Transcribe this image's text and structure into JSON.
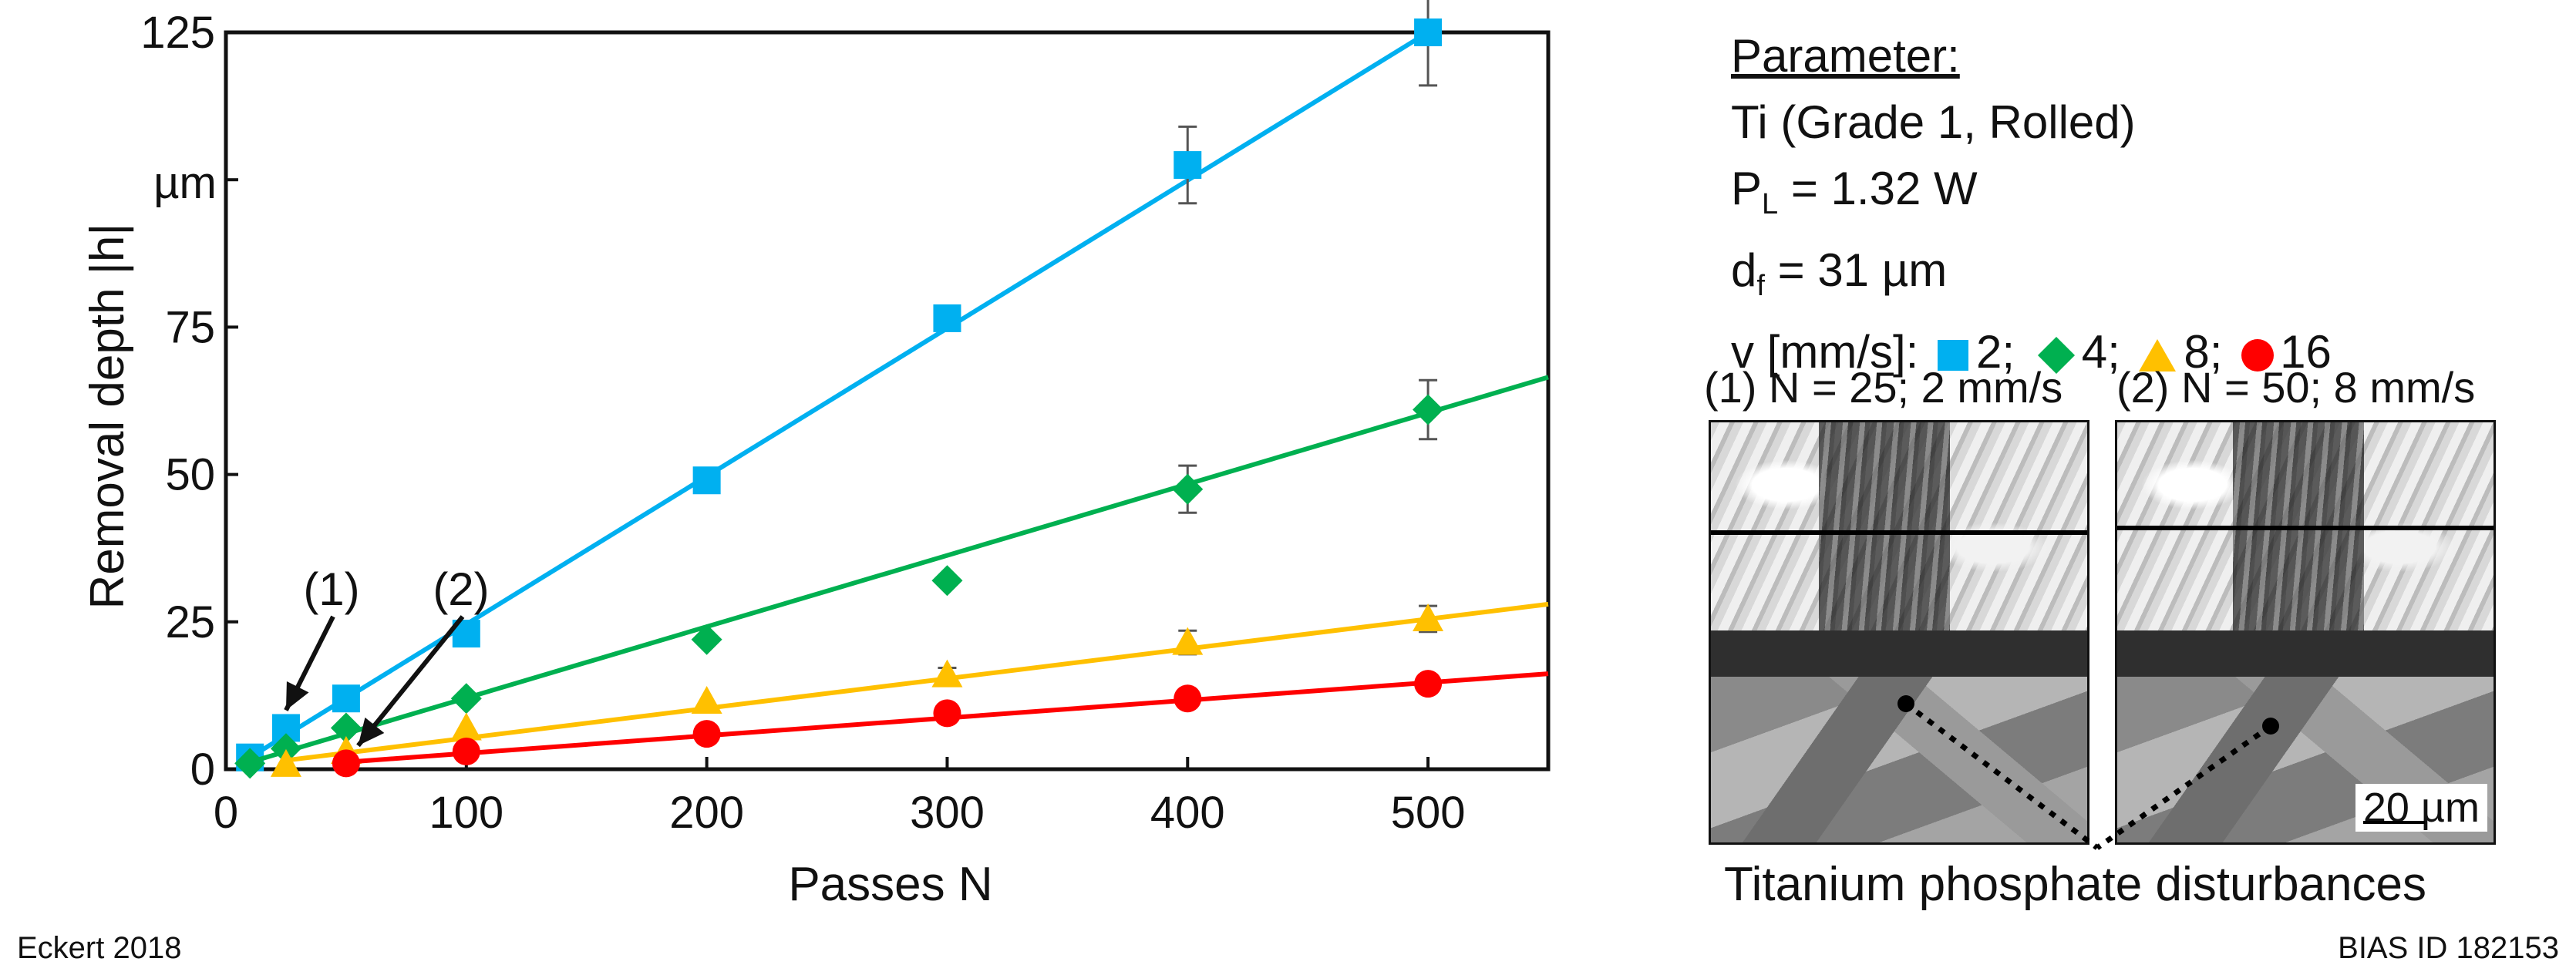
{
  "chart_data": {
    "type": "scatter",
    "xlabel": "Passes N",
    "ylabel": "Removal depth |h|",
    "y_unit_label": "µm",
    "xlim": [
      0,
      550
    ],
    "ylim": [
      0,
      125
    ],
    "x_ticks": [
      0,
      100,
      200,
      300,
      400,
      500
    ],
    "y_ticks": [
      0,
      25,
      50,
      75,
      125
    ],
    "grid": false,
    "series": [
      {
        "name": "2",
        "unit": "mm/s",
        "marker": "square",
        "color": "#00b0f0",
        "x": [
          10,
          25,
          50,
          100,
          200,
          300,
          400,
          500
        ],
        "y": [
          2,
          7,
          12,
          23,
          49,
          76.5,
          102.5,
          125
        ],
        "err": [
          0,
          0,
          0,
          0,
          0,
          1.5,
          6.5,
          9
        ],
        "fit": {
          "x": [
            10,
            500
          ],
          "y": [
            2,
            125
          ]
        }
      },
      {
        "name": "4",
        "unit": "mm/s",
        "marker": "diamond",
        "color": "#00b050",
        "x": [
          10,
          25,
          50,
          100,
          200,
          300,
          400,
          500
        ],
        "y": [
          1,
          3.5,
          7,
          12,
          22,
          32,
          47.5,
          61
        ],
        "err": [
          0,
          0,
          0,
          0,
          0,
          0,
          4,
          5
        ],
        "fit": {
          "x": [
            10,
            550
          ],
          "y": [
            1.2,
            66.5
          ]
        }
      },
      {
        "name": "8",
        "unit": "mm/s",
        "marker": "triangle",
        "color": "#ffc000",
        "x": [
          25,
          50,
          100,
          200,
          300,
          400,
          500
        ],
        "y": [
          0.8,
          3,
          7,
          11.5,
          16,
          21.5,
          25.5
        ],
        "err": [
          0,
          0,
          0,
          0,
          1.2,
          2,
          2.2
        ],
        "fit": {
          "x": [
            25,
            550
          ],
          "y": [
            1.5,
            28
          ]
        }
      },
      {
        "name": "16",
        "unit": "mm/s",
        "marker": "circle",
        "color": "#ff0000",
        "x": [
          50,
          100,
          200,
          300,
          400,
          500
        ],
        "y": [
          1,
          3,
          6,
          9.5,
          12,
          14.5
        ],
        "err": [
          0,
          0,
          0,
          0,
          0,
          0
        ],
        "fit": {
          "x": [
            50,
            550
          ],
          "y": [
            1.2,
            16.2
          ]
        }
      }
    ],
    "annotations": [
      {
        "label": "(1)",
        "tip_x": 25,
        "tip_y": 10
      },
      {
        "label": "(2)",
        "tip_x": 55,
        "tip_y": 4
      }
    ]
  },
  "legend": {
    "heading": "Parameter:",
    "material": "Ti (Grade 1, Rolled)",
    "power_symbol": "P",
    "power_sub": "L",
    "power_value": " = 1.32 W",
    "focus_symbol": "d",
    "focus_sub": "f",
    "focus_value": " = 31 µm",
    "velocity_label": "v [mm/s]:",
    "items": [
      "2;",
      "4;",
      "8;",
      "16"
    ]
  },
  "micrographs": {
    "left_title": "(1) N = 25; 2 mm/s",
    "right_title": "(2) N = 50; 8 mm/s",
    "scale_label": "20 µm",
    "caption": "Titanium phosphate disturbances"
  },
  "footer": {
    "author": "Eckert 2018",
    "id": "BIAS ID 182153"
  },
  "colors": {
    "blue": "#00b0f0",
    "green": "#00b050",
    "yellow": "#ffc000",
    "red": "#ff0000"
  }
}
